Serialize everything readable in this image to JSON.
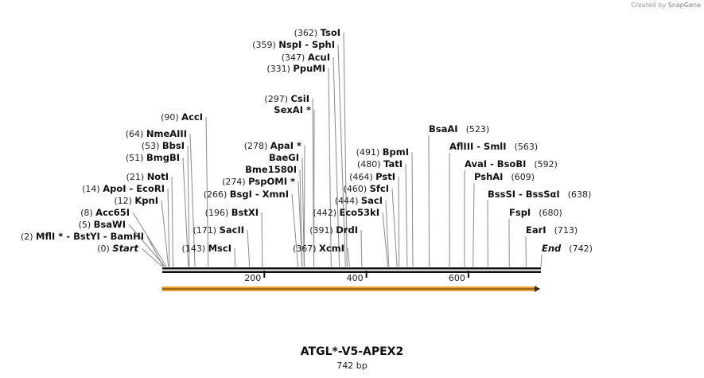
{
  "credit": {
    "prefix": "Created by",
    "brand": "SnapGene"
  },
  "title": "ATGL*-V5-APEX2",
  "length_label": "742 bp",
  "sequence": {
    "length": 742,
    "ruler_ticks": [
      {
        "pos": 200,
        "label": "200"
      },
      {
        "pos": 400,
        "label": "400"
      },
      {
        "pos": 600,
        "label": "600"
      }
    ],
    "feature_arrow": {
      "start": 0,
      "end": 742,
      "color": "#f5a623",
      "direction": "forward"
    }
  },
  "sites": [
    {
      "id": "start",
      "pos": 0,
      "num": "(0)",
      "name": "Start",
      "italic": true,
      "side": "left"
    },
    {
      "id": "mfli",
      "pos": 2,
      "num": "(2)",
      "name": "MflI * - BstYI - BamHI",
      "side": "left"
    },
    {
      "id": "bsawi",
      "pos": 5,
      "num": "(5)",
      "name": "BsaWI",
      "side": "left"
    },
    {
      "id": "acc65i",
      "pos": 8,
      "num": "(8)",
      "name": "Acc65I",
      "side": "left"
    },
    {
      "id": "kpni",
      "pos": 12,
      "num": "(12)",
      "name": "KpnI",
      "side": "left"
    },
    {
      "id": "apoi",
      "pos": 14,
      "num": "(14)",
      "name": "ApoI - EcoRI",
      "side": "left"
    },
    {
      "id": "noti",
      "pos": 21,
      "num": "(21)",
      "name": "NotI",
      "side": "left"
    },
    {
      "id": "bmgbi",
      "pos": 51,
      "num": "(51)",
      "name": "BmgBI",
      "side": "left"
    },
    {
      "id": "bbsi",
      "pos": 53,
      "num": "(53)",
      "name": "BbsI",
      "side": "left"
    },
    {
      "id": "nmeaiii",
      "pos": 64,
      "num": "(64)",
      "name": "NmeAIII",
      "side": "left"
    },
    {
      "id": "acci",
      "pos": 90,
      "num": "(90)",
      "name": "AccI",
      "side": "left"
    },
    {
      "id": "msci",
      "pos": 143,
      "num": "(143)",
      "name": "MscI",
      "side": "left"
    },
    {
      "id": "sacii",
      "pos": 171,
      "num": "(171)",
      "name": "SacII",
      "side": "left"
    },
    {
      "id": "bstxi",
      "pos": 196,
      "num": "(196)",
      "name": "BstXI",
      "side": "left"
    },
    {
      "id": "bsgi",
      "pos": 266,
      "num": "(266)",
      "name": "BsgI - XmnI",
      "side": "left"
    },
    {
      "id": "pspomi",
      "pos": 274,
      "num": "(274)",
      "name": "PspOMI *",
      "side": "left"
    },
    {
      "id": "bme1580i",
      "pos": 274,
      "num": "",
      "name": "Bme1580I",
      "side": "left"
    },
    {
      "id": "baegi",
      "pos": 278,
      "num": "",
      "name": "BaeGI",
      "side": "left"
    },
    {
      "id": "apai",
      "pos": 278,
      "num": "(278)",
      "name": "ApaI *",
      "side": "left"
    },
    {
      "id": "sexai",
      "pos": 297,
      "num": "",
      "name": "SexAI *",
      "side": "left"
    },
    {
      "id": "csii",
      "pos": 297,
      "num": "(297)",
      "name": "CsiI",
      "side": "left"
    },
    {
      "id": "ppumi",
      "pos": 331,
      "num": "(331)",
      "name": "PpuMI",
      "side": "left"
    },
    {
      "id": "acui",
      "pos": 347,
      "num": "(347)",
      "name": "AcuI",
      "side": "left"
    },
    {
      "id": "nspi",
      "pos": 359,
      "num": "(359)",
      "name": "NspI - SphI",
      "side": "left"
    },
    {
      "id": "tsoi",
      "pos": 362,
      "num": "(362)",
      "name": "TsoI",
      "side": "left"
    },
    {
      "id": "xcmi",
      "pos": 367,
      "num": "(367)",
      "name": "XcmI",
      "side": "left"
    },
    {
      "id": "drdi",
      "pos": 391,
      "num": "(391)",
      "name": "DrdI",
      "side": "left"
    },
    {
      "id": "eco53ki",
      "pos": 442,
      "num": "(442)",
      "name": "Eco53kI",
      "side": "left"
    },
    {
      "id": "saci",
      "pos": 444,
      "num": "(444)",
      "name": "SacI",
      "side": "left"
    },
    {
      "id": "sfci",
      "pos": 460,
      "num": "(460)",
      "name": "SfcI",
      "side": "left"
    },
    {
      "id": "psti",
      "pos": 464,
      "num": "(464)",
      "name": "PstI",
      "side": "left"
    },
    {
      "id": "tati",
      "pos": 480,
      "num": "(480)",
      "name": "TatI",
      "side": "left"
    },
    {
      "id": "bpmi",
      "pos": 491,
      "num": "(491)",
      "name": "BpmI",
      "side": "left"
    },
    {
      "id": "bsaai",
      "pos": 523,
      "num": "(523)",
      "name": "BsaAI",
      "side": "right"
    },
    {
      "id": "aflii",
      "pos": 563,
      "num": "(563)",
      "name": "AflIII - SmlI",
      "side": "right"
    },
    {
      "id": "avai",
      "pos": 592,
      "num": "(592)",
      "name": "AvaI - BsoBI",
      "side": "right"
    },
    {
      "id": "pshai",
      "pos": 609,
      "num": "(609)",
      "name": "PshAI",
      "side": "right"
    },
    {
      "id": "bsssi",
      "pos": 638,
      "num": "(638)",
      "name": "BssSI - BssSαI",
      "side": "right"
    },
    {
      "id": "fspi",
      "pos": 680,
      "num": "(680)",
      "name": "FspI",
      "side": "right"
    },
    {
      "id": "eari",
      "pos": 713,
      "num": "(713)",
      "name": "EarI",
      "side": "right"
    },
    {
      "id": "end",
      "pos": 742,
      "num": "(742)",
      "name": "End",
      "italic": true,
      "side": "right"
    }
  ]
}
